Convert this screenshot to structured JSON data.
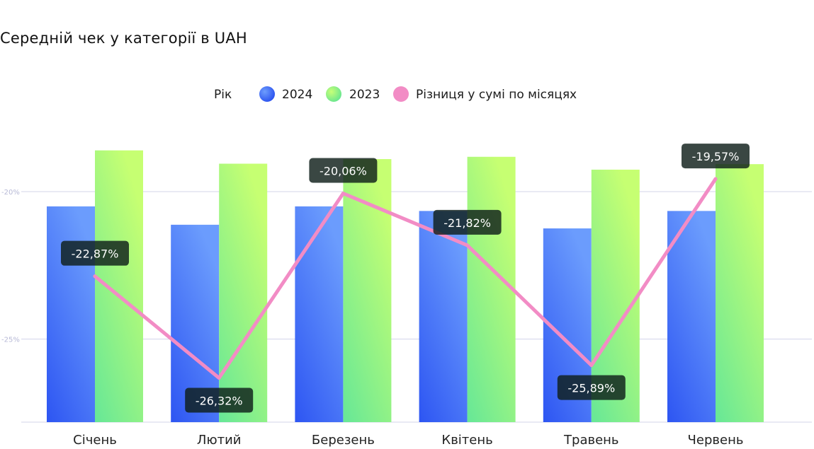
{
  "chart_data": {
    "type": "bar",
    "title": "Середній чек у категорії в UAH",
    "legend_title": "Рік",
    "legend_position": "top-center",
    "categories": [
      "Січень",
      "Лютий",
      "Березень",
      "Квітень",
      "Травень",
      "Червень"
    ],
    "series": [
      {
        "name": "2024",
        "kind": "bar",
        "axis": "bar",
        "values": [
          700,
          660,
          700,
          690,
          652,
          690
        ],
        "color": "#4a7bf7"
      },
      {
        "name": "2023",
        "kind": "bar",
        "axis": "bar",
        "values": [
          822,
          793,
          803,
          808,
          780,
          792
        ],
        "color": "#9ef28a"
      },
      {
        "name": "Різниця у сумі по місяцях",
        "kind": "line",
        "axis": "pct",
        "values": [
          -22.87,
          -26.32,
          -20.06,
          -21.82,
          -25.89,
          -19.57
        ],
        "labels": [
          "-22,87%",
          "-26,32%",
          "-20,06%",
          "-21,82%",
          "-25,89%",
          "-19,57%"
        ],
        "color": "#f28cc5"
      }
    ],
    "pct_axis": {
      "ticks": [
        -20,
        -25
      ],
      "tick_labels": [
        "-20%",
        "-25%"
      ],
      "range": [
        -28,
        -17
      ]
    },
    "bar_axis": {
      "range": [
        230,
        920
      ]
    },
    "grid": true
  }
}
